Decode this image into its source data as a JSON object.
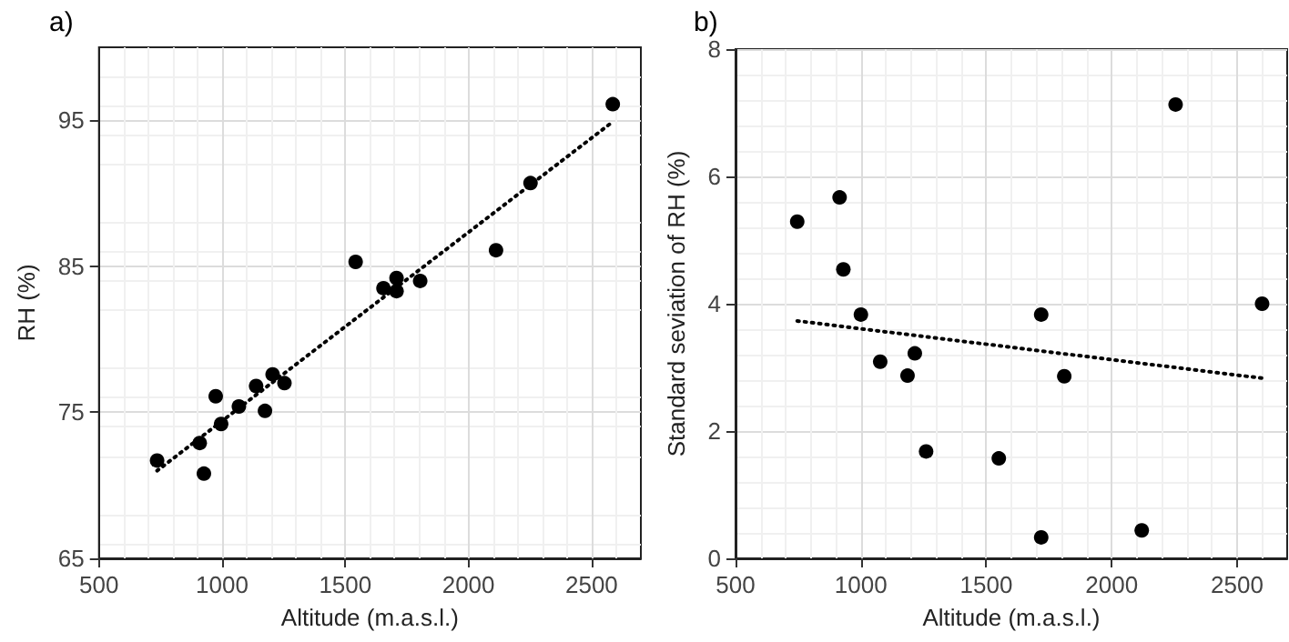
{
  "chart_data": [
    {
      "type": "scatter",
      "title": "a)",
      "xlabel": "Altitude (m.a.s.l.)",
      "ylabel": "RH (%)",
      "xlim": [
        500,
        2700
      ],
      "ylim": [
        65,
        100
      ],
      "xticks": [
        500,
        1000,
        1500,
        2000,
        2500
      ],
      "yticks": [
        65,
        75,
        85,
        95
      ],
      "grid": true,
      "marker": "circle",
      "series": [
        {
          "color": "#000000",
          "x": [
            736,
            909,
            926,
            974,
            996,
            1068,
            1138,
            1174,
            1205,
            1253,
            1542,
            1655,
            1708,
            1708,
            1804,
            2112,
            2252,
            2586
          ],
          "values": [
            71.7,
            72.9,
            70.8,
            76.1,
            74.2,
            75.4,
            76.8,
            75.1,
            77.6,
            77.0,
            85.3,
            83.5,
            84.2,
            83.3,
            84.0,
            86.1,
            90.7,
            96.1
          ]
        },
        {
          "type": "line",
          "color": "#000000",
          "marker": "none",
          "line_style": "dotted",
          "x": [
            736,
            2586
          ],
          "values": [
            71.0,
            94.9
          ]
        }
      ]
    },
    {
      "type": "scatter",
      "title": "b)",
      "xlabel": "Altitude (m.a.s.l.)",
      "ylabel": "Standard seviation of RH (%)",
      "xlim": [
        500,
        2700
      ],
      "ylim": [
        0,
        8
      ],
      "xticks": [
        500,
        1000,
        1500,
        2000,
        2500
      ],
      "yticks": [
        0,
        2,
        4,
        6,
        8
      ],
      "grid": true,
      "marker": "circle",
      "series": [
        {
          "color": "#000000",
          "x": [
            746,
            915,
            930,
            1000,
            1077,
            1186,
            1215,
            1260,
            1550,
            1719,
            1719,
            1811,
            2120,
            2255,
            2600
          ],
          "values": [
            5.29,
            5.67,
            4.54,
            3.83,
            3.09,
            2.87,
            3.22,
            1.68,
            1.57,
            3.83,
            0.33,
            2.86,
            0.44,
            7.13,
            4.0
          ]
        },
        {
          "type": "line",
          "color": "#000000",
          "marker": "none",
          "line_style": "dotted",
          "x": [
            746,
            2600
          ],
          "values": [
            3.73,
            2.83
          ]
        }
      ]
    }
  ]
}
